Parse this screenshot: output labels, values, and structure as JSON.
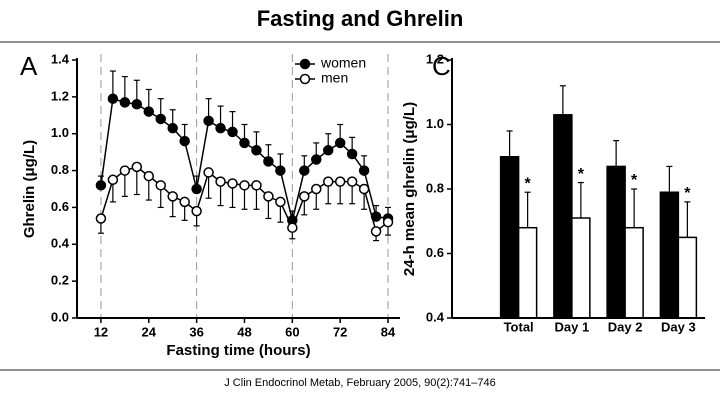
{
  "header": {
    "title": "Fasting and Ghrelin"
  },
  "chart_data": [
    {
      "type": "line",
      "panel": "A",
      "xlabel": "Fasting time (hours)",
      "ylabel": "Ghrelin (μg/L)",
      "x": [
        12,
        15,
        18,
        21,
        24,
        27,
        30,
        33,
        36,
        39,
        42,
        45,
        48,
        51,
        54,
        57,
        60,
        63,
        66,
        69,
        72,
        75,
        78,
        81,
        84
      ],
      "series": [
        {
          "name": "women",
          "color": "#000000",
          "marker_fill": "#000000",
          "error_direction": "up",
          "values": [
            0.72,
            1.19,
            1.17,
            1.16,
            1.12,
            1.08,
            1.03,
            0.96,
            0.7,
            1.07,
            1.03,
            1.01,
            0.95,
            0.91,
            0.85,
            0.8,
            0.53,
            0.8,
            0.86,
            0.91,
            0.95,
            0.89,
            0.8,
            0.55,
            0.54
          ],
          "errors": [
            0.05,
            0.15,
            0.14,
            0.13,
            0.12,
            0.11,
            0.1,
            0.09,
            0.07,
            0.12,
            0.12,
            0.11,
            0.1,
            0.1,
            0.09,
            0.09,
            0.05,
            0.08,
            0.09,
            0.09,
            0.1,
            0.09,
            0.08,
            0.06,
            0.06
          ]
        },
        {
          "name": "men",
          "color": "#000000",
          "marker_fill": "#ffffff",
          "error_direction": "down",
          "values": [
            0.54,
            0.75,
            0.8,
            0.82,
            0.77,
            0.72,
            0.66,
            0.63,
            0.58,
            0.79,
            0.74,
            0.73,
            0.72,
            0.72,
            0.66,
            0.63,
            0.49,
            0.66,
            0.7,
            0.74,
            0.74,
            0.74,
            0.7,
            0.47,
            0.52
          ],
          "errors": [
            0.08,
            0.12,
            0.14,
            0.15,
            0.13,
            0.12,
            0.11,
            0.1,
            0.08,
            0.14,
            0.13,
            0.13,
            0.13,
            0.13,
            0.12,
            0.11,
            0.06,
            0.1,
            0.11,
            0.12,
            0.12,
            0.12,
            0.11,
            0.05,
            0.07
          ]
        }
      ],
      "xlim": [
        6,
        87
      ],
      "xticks": [
        12,
        24,
        36,
        48,
        60,
        72,
        84
      ],
      "ylim": [
        0,
        1.4
      ],
      "yticks": [
        {
          "value": 0,
          "label": "0.0"
        },
        0.2,
        0.4,
        0.6,
        0.8,
        {
          "value": 1,
          "label": "1.0"
        },
        1.2,
        1.4
      ],
      "vlines": [
        12,
        36,
        60,
        84
      ],
      "legend": "upper right"
    },
    {
      "type": "bar",
      "panel": "C",
      "ylabel": "24-h mean ghrelin (μg/L)",
      "categories": [
        "Total",
        "Day 1",
        "Day 2",
        "Day 3"
      ],
      "series": [
        {
          "name": "women",
          "color": "#000000",
          "values": [
            0.9,
            1.03,
            0.87,
            0.79
          ],
          "errors": [
            0.08,
            0.09,
            0.08,
            0.08
          ]
        },
        {
          "name": "men",
          "color": "#ffffff",
          "values": [
            0.68,
            0.71,
            0.68,
            0.65
          ],
          "errors": [
            0.11,
            0.11,
            0.12,
            0.11
          ],
          "significance": [
            "*",
            "*",
            "*",
            "*"
          ]
        }
      ],
      "ylim": [
        0.4,
        1.2
      ],
      "yticks": [
        0.4,
        0.6,
        0.8,
        {
          "value": 1,
          "label": "1.0"
        },
        1.2
      ]
    }
  ],
  "footer": {
    "citation": "J Clin Endocrinol Metab, February 2005, 90(2):741–746"
  }
}
